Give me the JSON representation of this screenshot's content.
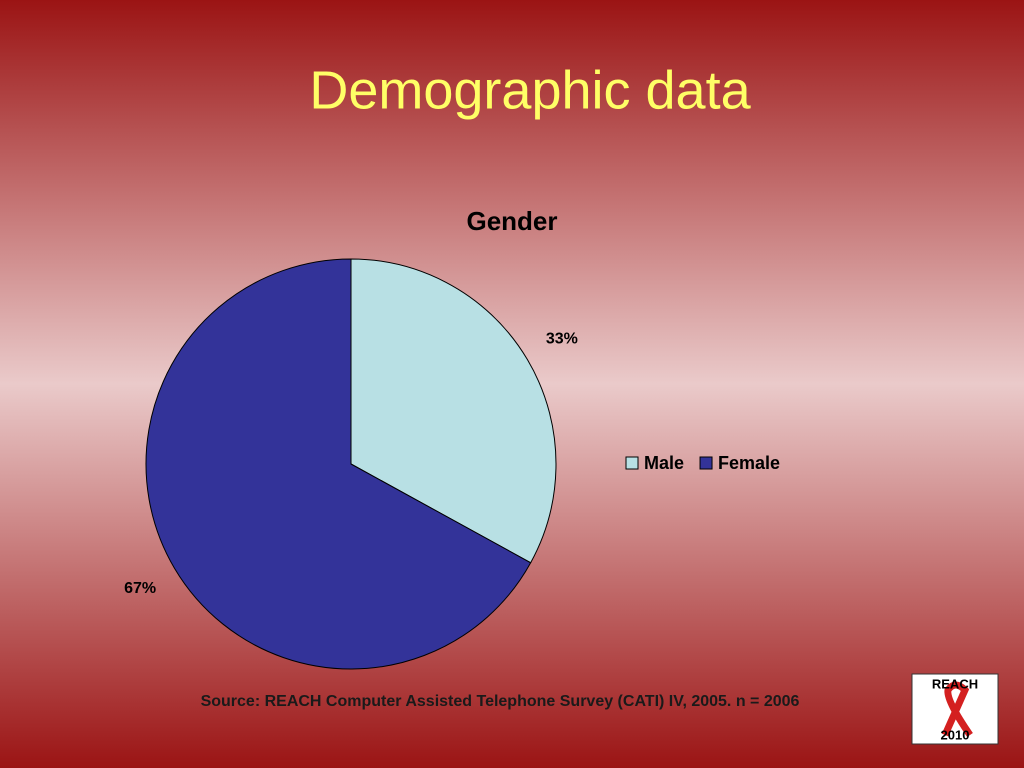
{
  "slide_title": "Demographic data",
  "chart_data": {
    "type": "pie",
    "title": "Gender",
    "categories": [
      "Male",
      "Female"
    ],
    "values": [
      33,
      67
    ],
    "value_labels": [
      "33%",
      "67%"
    ],
    "colors": [
      "#b8e0e4",
      "#333399"
    ],
    "start_angle": 0,
    "direction": "clockwise",
    "legend": "right"
  },
  "source": "Source: REACH Computer Assisted Telephone Survey (CATI) IV, 2005. n = 2006",
  "logo": {
    "top": "REACH",
    "bottom": "2010"
  }
}
